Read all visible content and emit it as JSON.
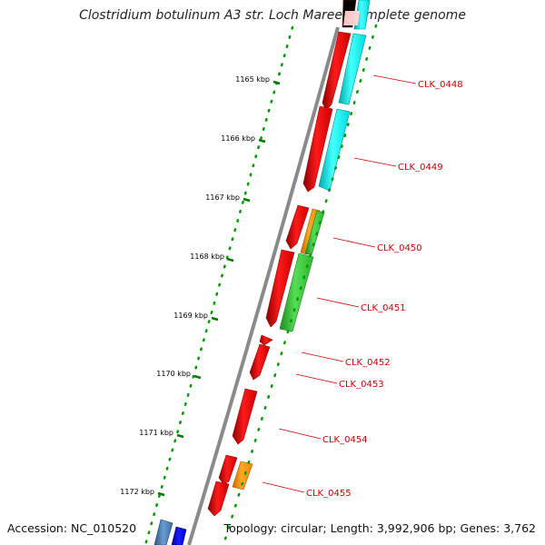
{
  "title": "Clostridium botulinum A3 str. Loch Maree, complete genome",
  "footer": {
    "accession": "Accession: NC_010520",
    "summary": "Topology: circular; Length: 3,992,906 bp; Genes: 3,762"
  },
  "ticks": [
    "1165 kbp",
    "1166 kbp",
    "1167 kbp",
    "1168 kbp",
    "1169 kbp",
    "1170 kbp",
    "1171 kbp",
    "1172 kbp"
  ],
  "gene_labels": [
    "CLK_0448",
    "CLK_0449",
    "CLK_0450",
    "CLK_0451",
    "CLK_0452",
    "CLK_0453",
    "CLK_0454",
    "CLK_0455"
  ],
  "colors": {
    "cds_red": "#ee0000",
    "cyan": "#00eeee",
    "green": "#33cc33",
    "orange": "#ff9900",
    "blue": "#0000ee",
    "steel": "#4a7ab5",
    "backbone": "#888888",
    "tick_green": "#007700",
    "label_red": "#cc0000"
  }
}
